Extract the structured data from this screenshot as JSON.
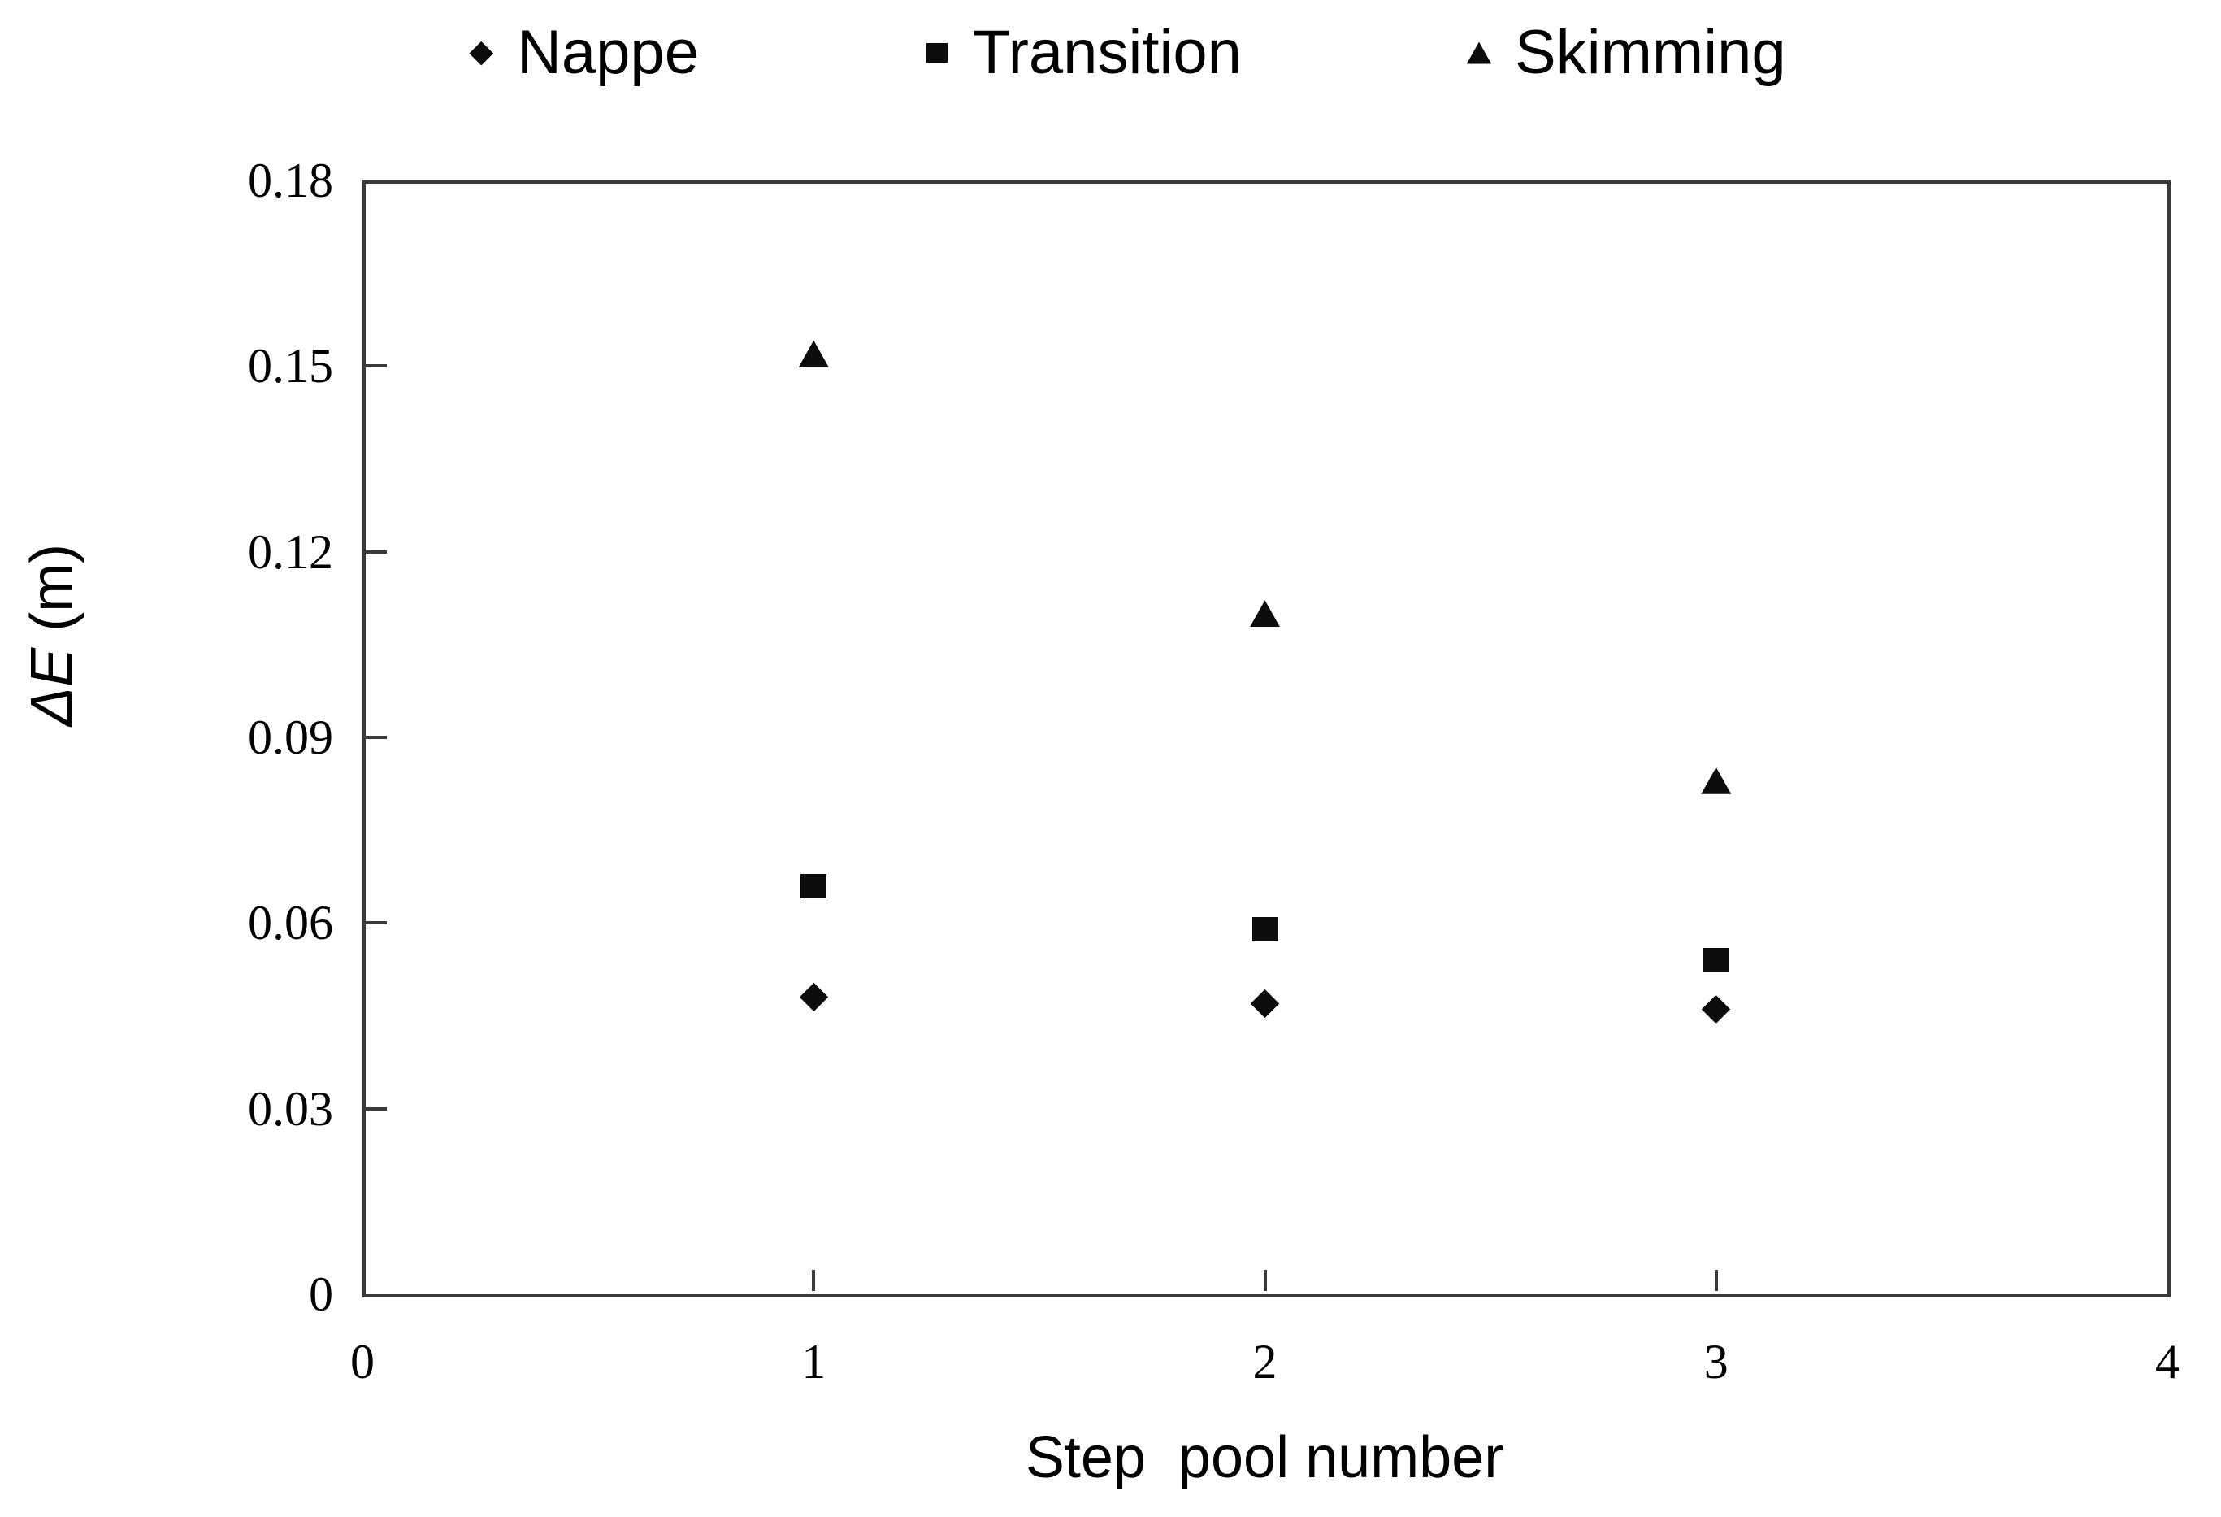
{
  "legend": {
    "items": [
      {
        "label": "Nappe",
        "marker": "diamond"
      },
      {
        "label": "Transition",
        "marker": "square"
      },
      {
        "label": "Skimming",
        "marker": "triangle"
      }
    ]
  },
  "chart_data": {
    "type": "scatter",
    "title": "",
    "xlabel": "Step  pool number",
    "ylabel": "ΔE (m)",
    "ylabel_symbol": "ΔE",
    "ylabel_unit": " (m)",
    "xlim": [
      0,
      4
    ],
    "ylim": [
      0,
      0.18
    ],
    "x_ticks": [
      0,
      1,
      2,
      3,
      4
    ],
    "x_tick_labels": [
      "0",
      "1",
      "2",
      "3",
      "4"
    ],
    "y_ticks": [
      0,
      0.03,
      0.06,
      0.09,
      0.12,
      0.15,
      0.18
    ],
    "y_tick_labels": [
      "0",
      "0.03",
      "0.06",
      "0.09",
      "0.12",
      "0.15",
      "0.18"
    ],
    "grid": false,
    "legend_position": "top-center",
    "marker_color": "#0d0d0d",
    "axis_color": "#3a3a3a",
    "categories": [
      1,
      2,
      3
    ],
    "series": [
      {
        "name": "Nappe",
        "marker": "diamond",
        "x": [
          1,
          2,
          3
        ],
        "y": [
          0.048,
          0.047,
          0.046
        ]
      },
      {
        "name": "Transition",
        "marker": "square",
        "x": [
          1,
          2,
          3
        ],
        "y": [
          0.066,
          0.059,
          0.054
        ]
      },
      {
        "name": "Skimming",
        "marker": "triangle",
        "x": [
          1,
          2,
          3
        ],
        "y": [
          0.152,
          0.11,
          0.083
        ]
      }
    ]
  }
}
